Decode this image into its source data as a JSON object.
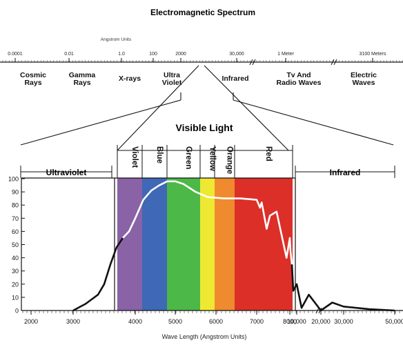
{
  "title": "Electromagnetic Spectrum",
  "scale_caption": "Angstrom Units",
  "top_ticks": [
    "0.0001",
    "0.01",
    "1.0",
    "100",
    "2000",
    "30,000",
    "1 Meter",
    "3100 Meters"
  ],
  "top_regions": [
    [
      "Cosmic",
      "Rays"
    ],
    [
      "Gamma",
      "Rays"
    ],
    [
      "X-rays"
    ],
    [
      "Ultra",
      "Violet"
    ],
    [
      "Infrared"
    ],
    [
      "Tv And",
      "Radio Waves"
    ],
    [
      "Electric",
      "Waves"
    ]
  ],
  "visible_title": "Visible Light",
  "side_labels": {
    "left": "Ultraviolet",
    "right": "Infrared"
  },
  "color_bands": [
    {
      "name": "Violet",
      "color": "#8a62a6"
    },
    {
      "name": "Blue",
      "color": "#3f68b6"
    },
    {
      "name": "Green",
      "color": "#4cb848"
    },
    {
      "name": "Yellow",
      "color": "#eee832"
    },
    {
      "name": "Orange",
      "color": "#ef8a2e"
    },
    {
      "name": "Red",
      "color": "#dc2f28"
    }
  ],
  "y_ticks": [
    "100",
    "90",
    "80",
    "70",
    "60",
    "50",
    "40",
    "30",
    "20",
    "10",
    "0"
  ],
  "x_ticks": [
    "2000",
    "3000",
    "4000",
    "5000",
    "6000",
    "7000",
    "8000",
    "10,000",
    "20,000",
    "30,000",
    "50,000"
  ],
  "x_axis_label": "Wave Length (Angstrom Units)",
  "curve_points": [
    [
      3000,
      0
    ],
    [
      3200,
      5
    ],
    [
      3400,
      12
    ],
    [
      3500,
      20
    ],
    [
      3600,
      35
    ],
    [
      3700,
      48
    ],
    [
      3800,
      55
    ],
    [
      3900,
      60
    ],
    [
      4000,
      70
    ],
    [
      4200,
      84
    ],
    [
      4400,
      91
    ],
    [
      4600,
      95
    ],
    [
      4800,
      98
    ],
    [
      5000,
      98
    ],
    [
      5200,
      96
    ],
    [
      5500,
      90
    ],
    [
      5800,
      86
    ],
    [
      6200,
      85
    ],
    [
      6600,
      85
    ],
    [
      7000,
      84
    ],
    [
      7100,
      78
    ],
    [
      7150,
      82
    ],
    [
      7300,
      62
    ],
    [
      7400,
      72
    ],
    [
      7600,
      75
    ],
    [
      7900,
      40
    ],
    [
      8000,
      55
    ],
    [
      8200,
      45
    ],
    [
      8600,
      35
    ],
    [
      9000,
      15
    ],
    [
      10000,
      20
    ],
    [
      12000,
      2
    ],
    [
      15000,
      12
    ],
    [
      20000,
      0
    ],
    [
      25000,
      6
    ],
    [
      30000,
      3
    ],
    [
      40000,
      1
    ],
    [
      50000,
      0
    ]
  ]
}
